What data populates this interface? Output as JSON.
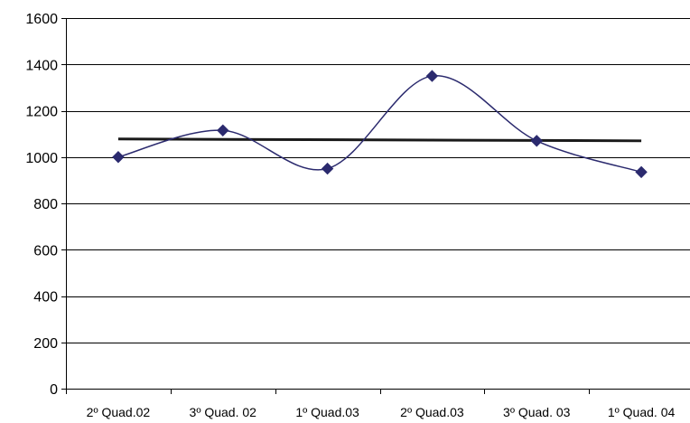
{
  "chart_data": {
    "type": "line",
    "title": "",
    "xlabel": "",
    "ylabel": "",
    "categories": [
      "2º Quad.02",
      "3º Quad. 02",
      "1º Quad.03",
      "2º Quad.03",
      "3º Quad. 03",
      "1º Quad. 04"
    ],
    "ylim": [
      0,
      1600
    ],
    "yticks": [
      0,
      200,
      400,
      600,
      800,
      1000,
      1200,
      1400,
      1600
    ],
    "grid": true,
    "legend": "none",
    "smoothed": true,
    "series": [
      {
        "values": [
          1000,
          1115,
          950,
          1350,
          1070,
          935
        ],
        "color": "#2b2a6e",
        "marker": "diamond"
      }
    ],
    "trendline": {
      "type": "linear",
      "start": 1078,
      "end": 1070,
      "color": "#1a1a1a"
    }
  }
}
